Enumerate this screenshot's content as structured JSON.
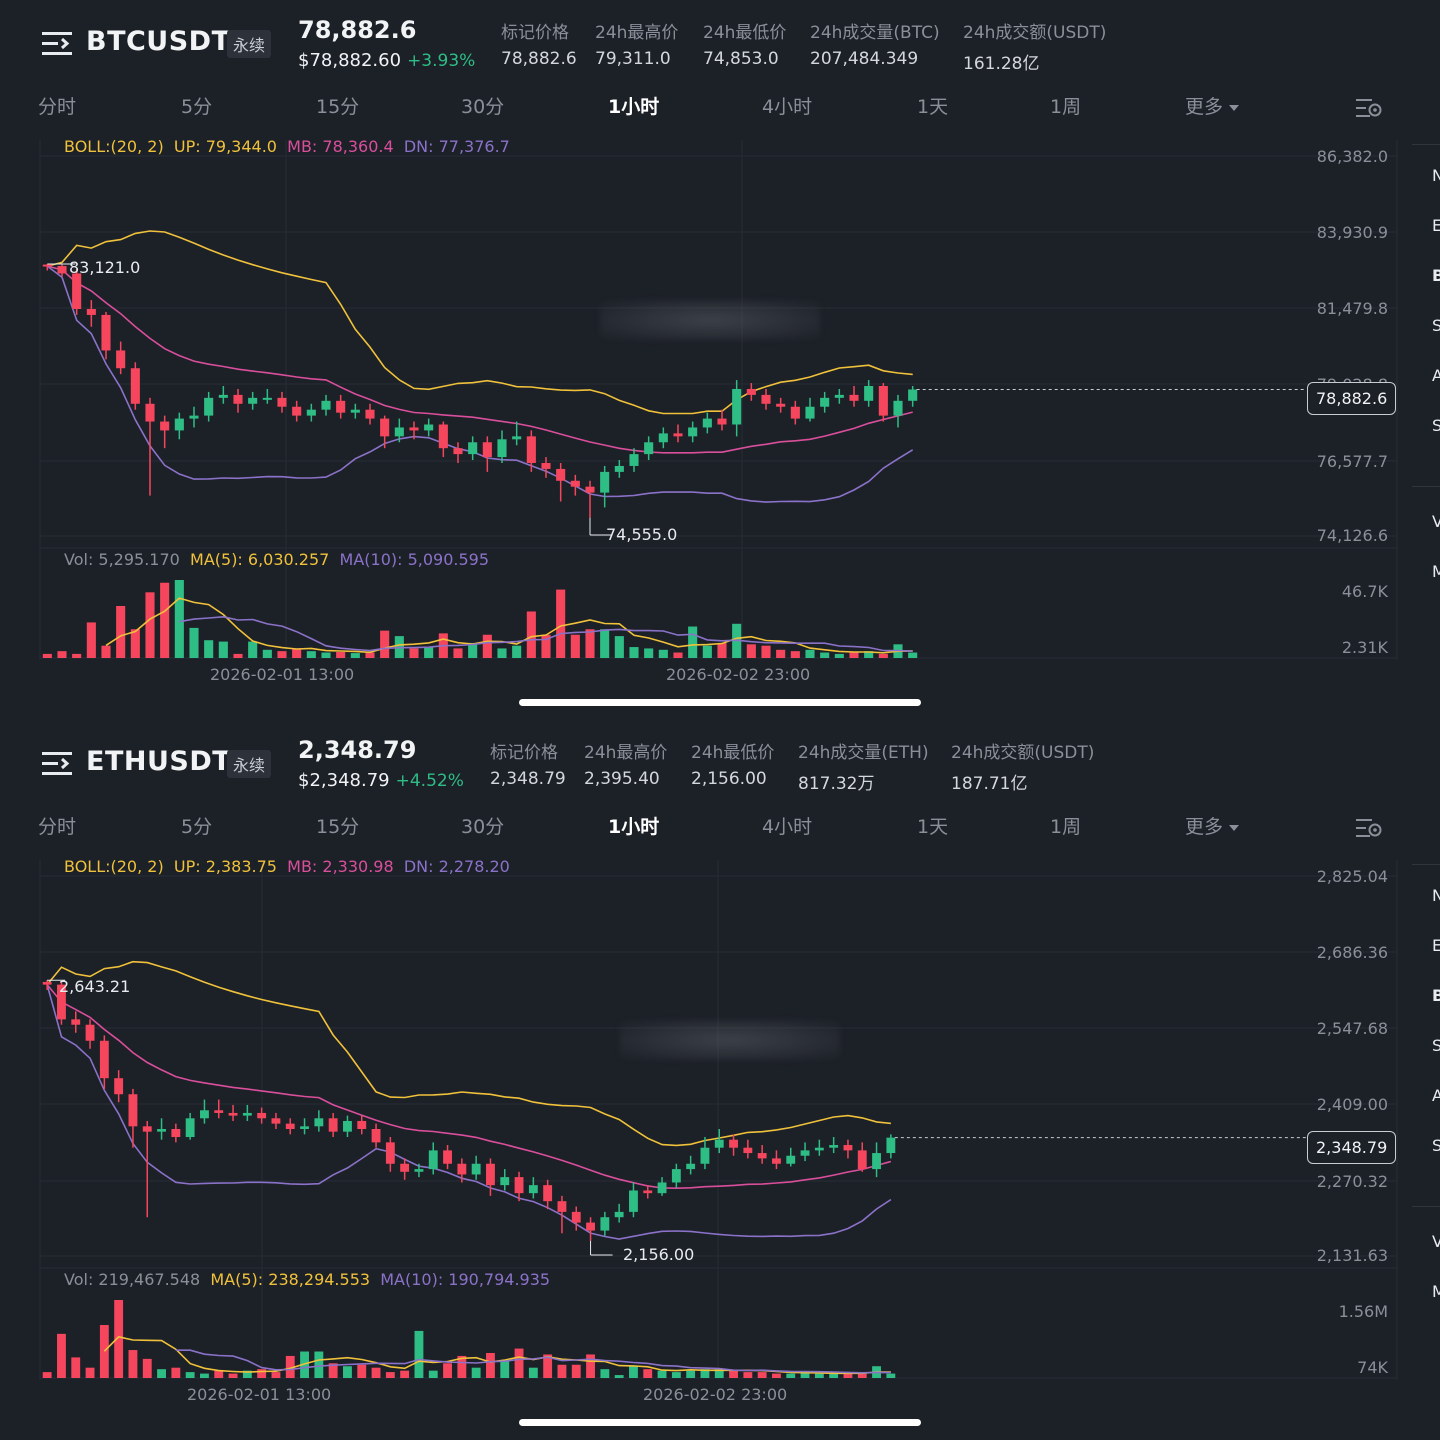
{
  "panels": [
    {
      "symbol": "BTCUSDT",
      "perp_label": "永续",
      "last_price": "78,882.6",
      "usd_price": "$78,882.60",
      "change": "+3.93%",
      "stats": [
        {
          "label": "标记价格",
          "value": "78,882.6"
        },
        {
          "label": "24h最高价",
          "value": "79,311.0"
        },
        {
          "label": "24h最低价",
          "value": "74,853.0"
        },
        {
          "label": "24h成交量(BTC)",
          "value": "207,484.349"
        },
        {
          "label": "24h成交额(USDT)",
          "value": "161.28亿"
        }
      ],
      "tabs": [
        "分时",
        "5分",
        "15分",
        "30分",
        "1小时",
        "4小时",
        "1天",
        "1周",
        "更多"
      ],
      "active_tab": "1小时",
      "boll": {
        "name": "BOLL:(20, 2)",
        "up": "UP: 79,344.0",
        "mb": "MB: 78,360.4",
        "dn": "DN: 77,376.7"
      },
      "vol": {
        "vol": "Vol: 5,295.170",
        "ma5": "MA(5): 6,030.257",
        "ma10": "MA(10): 5,090.595"
      },
      "price_ticks": [
        "86,382.0",
        "83,930.9",
        "81,479.8",
        "79,028.8",
        "76,577.7",
        "74,126.6"
      ],
      "vol_ticks": [
        "46.7K",
        "2.31K"
      ],
      "current_price_tag": "78,882.6",
      "high_label": "83,121.0",
      "low_label": "74,555.0",
      "time_labels": [
        "2026-02-01 13:00",
        "2026-02-02 23:00"
      ],
      "chart_data": {
        "type": "candlestick",
        "y_range": [
          73800,
          86800
        ],
        "candles": [
          [
            83100,
            83050,
            83121,
            82900
          ],
          [
            83050,
            82800,
            83100,
            82700
          ],
          [
            82800,
            81600,
            82950,
            81400
          ],
          [
            81600,
            81400,
            81900,
            81000
          ],
          [
            81400,
            80200,
            81500,
            79900
          ],
          [
            80200,
            79600,
            80500,
            79400
          ],
          [
            79600,
            78400,
            79800,
            78200
          ],
          [
            78400,
            77800,
            78600,
            75300
          ],
          [
            77800,
            77500,
            78000,
            76900
          ],
          [
            77500,
            77900,
            78100,
            77200
          ],
          [
            77900,
            78000,
            78300,
            77600
          ],
          [
            78000,
            78600,
            78800,
            77800
          ],
          [
            78600,
            78700,
            79000,
            78400
          ],
          [
            78700,
            78400,
            78900,
            78100
          ],
          [
            78400,
            78600,
            78800,
            78200
          ],
          [
            78600,
            78600,
            78900,
            78400
          ],
          [
            78600,
            78300,
            78800,
            78100
          ],
          [
            78300,
            78000,
            78500,
            77800
          ],
          [
            78000,
            78200,
            78400,
            77800
          ],
          [
            78200,
            78500,
            78700,
            78000
          ],
          [
            78500,
            78100,
            78700,
            77900
          ],
          [
            78100,
            78200,
            78400,
            77900
          ],
          [
            78200,
            77900,
            78400,
            77700
          ],
          [
            77900,
            77300,
            78000,
            76900
          ],
          [
            77300,
            77600,
            77900,
            77100
          ],
          [
            77600,
            77500,
            77800,
            77200
          ],
          [
            77500,
            77700,
            77900,
            77300
          ],
          [
            77700,
            76900,
            77800,
            76600
          ],
          [
            76900,
            76700,
            77100,
            76400
          ],
          [
            76700,
            77100,
            77300,
            76500
          ],
          [
            77100,
            76600,
            77300,
            76100
          ],
          [
            76600,
            77200,
            77500,
            76400
          ],
          [
            77200,
            77300,
            77800,
            77000
          ],
          [
            77300,
            76400,
            77500,
            76100
          ],
          [
            76400,
            76200,
            76600,
            75900
          ],
          [
            76200,
            75800,
            76400,
            75100
          ],
          [
            75800,
            75600,
            76000,
            75300
          ],
          [
            75600,
            75400,
            75800,
            74555
          ],
          [
            75400,
            76100,
            76300,
            74900
          ],
          [
            76100,
            76300,
            76500,
            75900
          ],
          [
            76300,
            76700,
            76900,
            76100
          ],
          [
            76700,
            77100,
            77300,
            76500
          ],
          [
            77100,
            77400,
            77600,
            76900
          ],
          [
            77400,
            77300,
            77700,
            77100
          ],
          [
            77300,
            77600,
            77800,
            77100
          ],
          [
            77600,
            77900,
            78100,
            77400
          ],
          [
            77900,
            77700,
            78200,
            77500
          ],
          [
            77700,
            78900,
            79200,
            77300
          ],
          [
            78900,
            78700,
            79100,
            78500
          ],
          [
            78700,
            78400,
            78900,
            78200
          ],
          [
            78400,
            78300,
            78600,
            78100
          ],
          [
            78300,
            77900,
            78500,
            77700
          ],
          [
            77900,
            78300,
            78600,
            77800
          ],
          [
            78300,
            78600,
            78800,
            78100
          ],
          [
            78600,
            78700,
            78900,
            78400
          ],
          [
            78700,
            78500,
            79000,
            78300
          ],
          [
            78500,
            79000,
            79200,
            78300
          ],
          [
            79000,
            78000,
            79100,
            77800
          ],
          [
            78000,
            78500,
            78700,
            77600
          ],
          [
            78500,
            78882.6,
            79000,
            78300
          ]
        ],
        "volumes": [
          1.5,
          2.5,
          1.5,
          13,
          4.5,
          19,
          10.5,
          24,
          27.5,
          28.5,
          11,
          6.5,
          6,
          1.5,
          6,
          3,
          2.5,
          3.5,
          2.5,
          2,
          2.2,
          1.8,
          2,
          10,
          8,
          3.5,
          4,
          9,
          3.5,
          5.5,
          8.5,
          3.5,
          4.5,
          17,
          8.5,
          25,
          8.5,
          10.5,
          10.5,
          8,
          4,
          3.5,
          3,
          2,
          11.5,
          4.5,
          5.5,
          12.5,
          5,
          4.5,
          3,
          2.5,
          3,
          2,
          1.5,
          2,
          2.5,
          1.5,
          5,
          2
        ],
        "vol_max": 47000
      }
    },
    {
      "symbol": "ETHUSDT",
      "perp_label": "永续",
      "last_price": "2,348.79",
      "usd_price": "$2,348.79",
      "change": "+4.52%",
      "stats": [
        {
          "label": "标记价格",
          "value": "2,348.79"
        },
        {
          "label": "24h最高价",
          "value": "2,395.40"
        },
        {
          "label": "24h最低价",
          "value": "2,156.00"
        },
        {
          "label": "24h成交量(ETH)",
          "value": "817.32万"
        },
        {
          "label": "24h成交额(USDT)",
          "value": "187.71亿"
        }
      ],
      "tabs": [
        "分时",
        "5分",
        "15分",
        "30分",
        "1小时",
        "4小时",
        "1天",
        "1周",
        "更多"
      ],
      "active_tab": "1小时",
      "boll": {
        "name": "BOLL:(20, 2)",
        "up": "UP: 2,383.75",
        "mb": "MB: 2,330.98",
        "dn": "DN: 2,278.20"
      },
      "vol": {
        "vol": "Vol: 219,467.548",
        "ma5": "MA(5): 238,294.553",
        "ma10": "MA(10): 190,794.935"
      },
      "price_ticks": [
        "2,825.04",
        "2,686.36",
        "2,547.68",
        "2,409.00",
        "2,270.32",
        "2,131.63"
      ],
      "vol_ticks": [
        "1.56M",
        "74K"
      ],
      "current_price_tag": "2,348.79",
      "high_label": "2,643.21",
      "low_label": "2,156.00",
      "time_labels": [
        "2026-02-01 13:00",
        "2026-02-02 23:00"
      ],
      "chart_data": {
        "type": "candlestick",
        "y_range": [
          2120,
          2840
        ],
        "candles": [
          [
            2640,
            2635,
            2643.21,
            2625
          ],
          [
            2635,
            2570,
            2640,
            2560
          ],
          [
            2570,
            2560,
            2585,
            2545
          ],
          [
            2560,
            2530,
            2570,
            2515
          ],
          [
            2530,
            2460,
            2540,
            2440
          ],
          [
            2460,
            2430,
            2475,
            2415
          ],
          [
            2430,
            2370,
            2440,
            2330
          ],
          [
            2370,
            2360,
            2380,
            2200
          ],
          [
            2360,
            2365,
            2385,
            2345
          ],
          [
            2365,
            2350,
            2375,
            2340
          ],
          [
            2350,
            2385,
            2395,
            2345
          ],
          [
            2385,
            2400,
            2420,
            2375
          ],
          [
            2400,
            2395,
            2420,
            2385
          ],
          [
            2395,
            2390,
            2410,
            2380
          ],
          [
            2390,
            2395,
            2410,
            2380
          ],
          [
            2395,
            2385,
            2405,
            2375
          ],
          [
            2385,
            2375,
            2395,
            2365
          ],
          [
            2375,
            2365,
            2385,
            2355
          ],
          [
            2365,
            2370,
            2385,
            2355
          ],
          [
            2370,
            2385,
            2400,
            2360
          ],
          [
            2385,
            2360,
            2395,
            2350
          ],
          [
            2360,
            2380,
            2390,
            2350
          ],
          [
            2380,
            2365,
            2390,
            2355
          ],
          [
            2365,
            2340,
            2375,
            2330
          ],
          [
            2340,
            2300,
            2350,
            2285
          ],
          [
            2300,
            2285,
            2310,
            2270
          ],
          [
            2285,
            2290,
            2300,
            2275
          ],
          [
            2290,
            2325,
            2340,
            2280
          ],
          [
            2325,
            2300,
            2335,
            2290
          ],
          [
            2300,
            2280,
            2310,
            2265
          ],
          [
            2280,
            2300,
            2315,
            2270
          ],
          [
            2300,
            2260,
            2310,
            2240
          ],
          [
            2260,
            2275,
            2290,
            2250
          ],
          [
            2275,
            2245,
            2285,
            2230
          ],
          [
            2245,
            2260,
            2275,
            2235
          ],
          [
            2260,
            2230,
            2270,
            2215
          ],
          [
            2230,
            2210,
            2240,
            2170
          ],
          [
            2210,
            2190,
            2220,
            2175
          ],
          [
            2190,
            2175,
            2200,
            2156
          ],
          [
            2175,
            2200,
            2210,
            2165
          ],
          [
            2200,
            2210,
            2225,
            2190
          ],
          [
            2210,
            2250,
            2265,
            2200
          ],
          [
            2250,
            2245,
            2260,
            2235
          ],
          [
            2245,
            2265,
            2275,
            2240
          ],
          [
            2265,
            2290,
            2300,
            2255
          ],
          [
            2290,
            2300,
            2315,
            2280
          ],
          [
            2300,
            2330,
            2350,
            2290
          ],
          [
            2330,
            2345,
            2365,
            2320
          ],
          [
            2345,
            2330,
            2355,
            2315
          ],
          [
            2330,
            2320,
            2345,
            2310
          ],
          [
            2320,
            2310,
            2335,
            2300
          ],
          [
            2310,
            2300,
            2325,
            2290
          ],
          [
            2300,
            2315,
            2330,
            2295
          ],
          [
            2315,
            2325,
            2340,
            2305
          ],
          [
            2325,
            2330,
            2345,
            2315
          ],
          [
            2330,
            2335,
            2350,
            2320
          ],
          [
            2335,
            2325,
            2345,
            2310
          ],
          [
            2325,
            2290,
            2340,
            2285
          ],
          [
            2290,
            2320,
            2340,
            2275
          ],
          [
            2320,
            2348.79,
            2355,
            2310
          ]
        ],
        "volumes": [
          2,
          15,
          7,
          3.5,
          18,
          26.5,
          9.5,
          6.5,
          3,
          3.5,
          2,
          1.5,
          2.5,
          1.5,
          2.5,
          3,
          2,
          7.5,
          9,
          9,
          5,
          4,
          4.5,
          3.5,
          2,
          2.5,
          16,
          2.5,
          5,
          7.5,
          3.5,
          8.5,
          6,
          10,
          3.5,
          8,
          4.5,
          4.5,
          8,
          3,
          1,
          4,
          3,
          2.5,
          2,
          2.5,
          3,
          3,
          2.5,
          2,
          2,
          1.5,
          1.5,
          2,
          1.5,
          1.5,
          1.5,
          1.5,
          4,
          1.5
        ],
        "vol_max": 1560000
      }
    }
  ],
  "side_labels": {
    "top": [
      "N",
      "E",
      "B",
      "S",
      "A",
      "S"
    ],
    "bottom": [
      "V",
      "M"
    ]
  }
}
